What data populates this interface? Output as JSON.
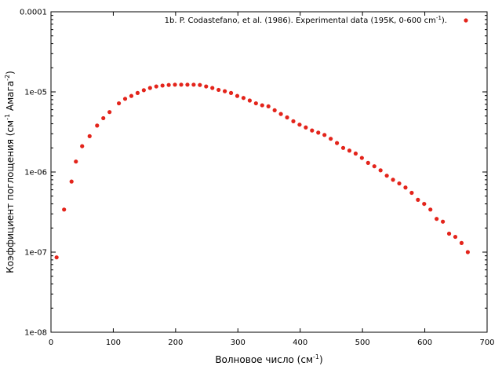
{
  "chart_data": {
    "type": "scatter",
    "xlabel": "Волновое число (см",
    "xlabel_sup": "-1",
    "xlabel_end": ")",
    "ylabel": "Коэффициент поглощения (см",
    "ylabel_sup1": "-1",
    "ylabel_mid": " Амага",
    "ylabel_sup2": "-2",
    "ylabel_end": ")",
    "x_scale": "linear",
    "y_scale": "log",
    "xlim": [
      0,
      700
    ],
    "ylim": [
      1e-08,
      0.0001
    ],
    "x_ticks": [
      0,
      100,
      200,
      300,
      400,
      500,
      600,
      700
    ],
    "x_tick_labels": [
      "0",
      "100",
      "200",
      "300",
      "400",
      "500",
      "600",
      "700"
    ],
    "y_ticks": [
      1e-08,
      1e-07,
      1e-06,
      1e-05,
      0.0001
    ],
    "y_tick_labels": [
      "1e-08",
      "1e-07",
      "1e-06",
      "1e-05",
      "0.0001"
    ],
    "grid": false,
    "legend_position": "top-right",
    "series": [
      {
        "name": "1b. P. Codastefano, et al. (1986). Experimental data (195K, 0-600 cm",
        "name_sup": "-1",
        "name_end": ").",
        "color": "#e3241b",
        "marker": "circle",
        "x": [
          9,
          21,
          33,
          40,
          50,
          62,
          74,
          84,
          94,
          109,
          119,
          129,
          139,
          149,
          159,
          169,
          179,
          189,
          199,
          209,
          219,
          229,
          239,
          249,
          259,
          269,
          279,
          289,
          299,
          309,
          319,
          329,
          339,
          349,
          359,
          369,
          379,
          389,
          399,
          409,
          419,
          429,
          439,
          449,
          459,
          469,
          479,
          489,
          499,
          509,
          519,
          529,
          539,
          549,
          559,
          569,
          579,
          589,
          599,
          609,
          619,
          629,
          639,
          649,
          659,
          669
        ],
        "y": [
          8.6e-08,
          3.4e-07,
          7.6e-07,
          1.35e-06,
          2.1e-06,
          2.8e-06,
          3.8e-06,
          4.7e-06,
          5.6e-06,
          7.2e-06,
          8.2e-06,
          8.9e-06,
          9.7e-06,
          1.05e-05,
          1.12e-05,
          1.17e-05,
          1.2e-05,
          1.22e-05,
          1.23e-05,
          1.23e-05,
          1.23e-05,
          1.23e-05,
          1.22e-05,
          1.17e-05,
          1.12e-05,
          1.06e-05,
          1.02e-05,
          9.7e-06,
          8.9e-06,
          8.4e-06,
          7.8e-06,
          7.2e-06,
          6.8e-06,
          6.6e-06,
          5.9e-06,
          5.3e-06,
          4.8e-06,
          4.3e-06,
          3.9e-06,
          3.6e-06,
          3.3e-06,
          3.1e-06,
          2.9e-06,
          2.6e-06,
          2.3e-06,
          2e-06,
          1.85e-06,
          1.7e-06,
          1.5e-06,
          1.3e-06,
          1.18e-06,
          1.05e-06,
          9e-07,
          8e-07,
          7.2e-07,
          6.4e-07,
          5.5e-07,
          4.5e-07,
          4e-07,
          3.4e-07,
          2.6e-07,
          2.4e-07,
          1.7e-07,
          1.55e-07,
          1.3e-07,
          1e-07
        ]
      }
    ]
  }
}
